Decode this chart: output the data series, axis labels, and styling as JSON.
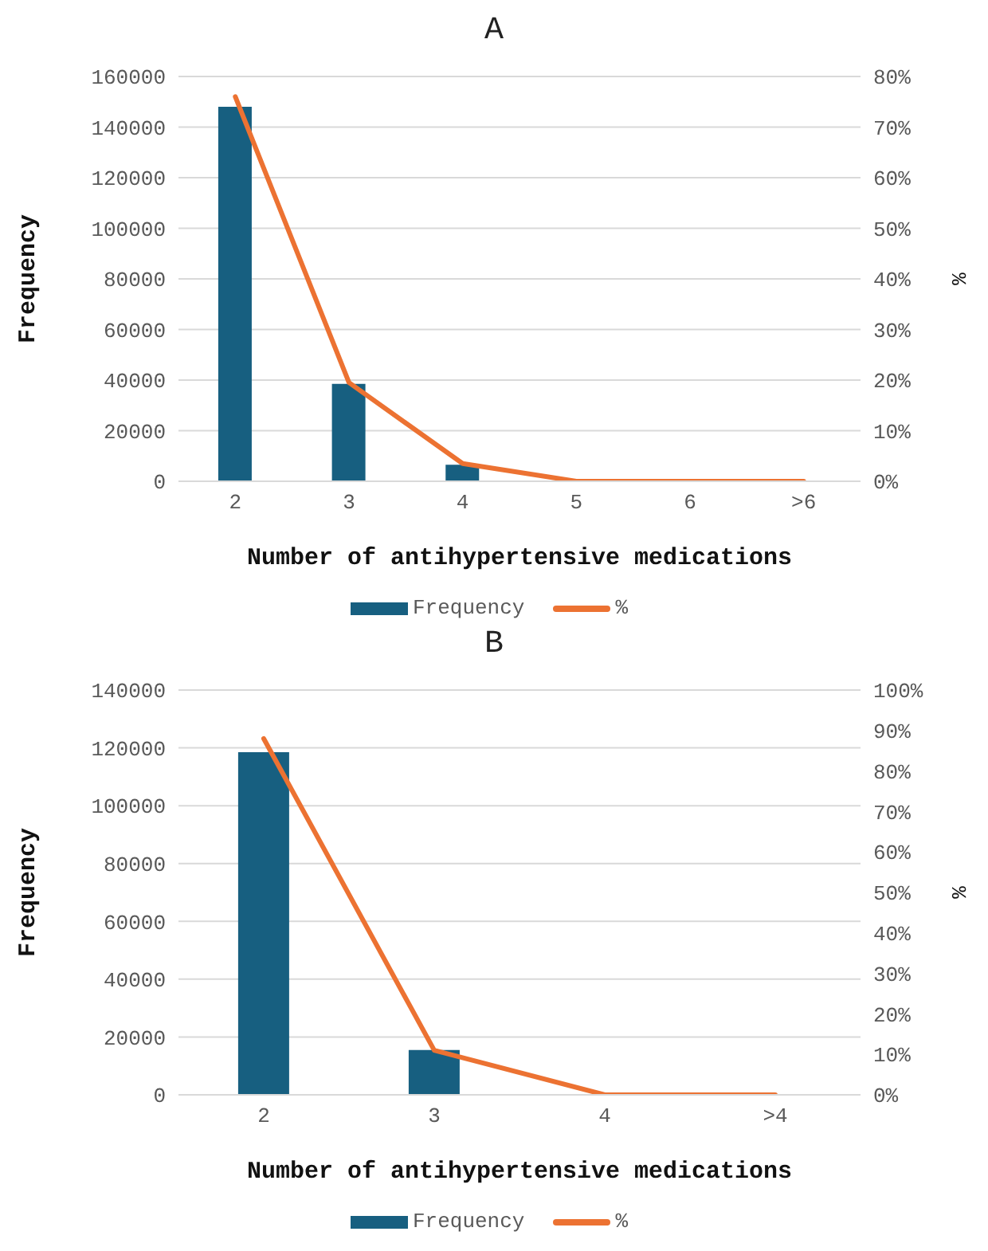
{
  "chart_data": [
    {
      "type": "bar",
      "title": "A",
      "xlabel": "Number of antihypertensive medications",
      "ylabel": "Frequency",
      "y2label": "%",
      "categories": [
        "2",
        "3",
        "4",
        "5",
        "6",
        ">6"
      ],
      "series": [
        {
          "name": "Frequency",
          "color": "#175f80",
          "values": [
            148000,
            38500,
            6500,
            0,
            0,
            0
          ]
        },
        {
          "name": "%",
          "type": "line",
          "axis": "y2",
          "color": "#ec7232",
          "values": [
            76,
            19.5,
            3.5,
            0,
            0,
            0
          ]
        }
      ],
      "ylim": [
        0,
        160000
      ],
      "yticks": [
        0,
        20000,
        40000,
        60000,
        80000,
        100000,
        120000,
        140000,
        160000
      ],
      "y2lim": [
        0,
        80
      ],
      "y2ticks": [
        {
          "value": 0,
          "label": "0%"
        },
        {
          "value": 10,
          "label": "10%"
        },
        {
          "value": 20,
          "label": "20%"
        },
        {
          "value": 30,
          "label": "30%"
        },
        {
          "value": 40,
          "label": "40%"
        },
        {
          "value": 50,
          "label": "50%"
        },
        {
          "value": 60,
          "label": "60%"
        },
        {
          "value": 70,
          "label": "70%"
        },
        {
          "value": 80,
          "label": "80%"
        }
      ],
      "grid": "y",
      "legend": "bottom",
      "marker": "none"
    },
    {
      "type": "bar",
      "title": "B",
      "xlabel": "Number of antihypertensive medications",
      "ylabel": "Frequency",
      "y2label": "%",
      "categories": [
        "2",
        "3",
        "4",
        ">4"
      ],
      "series": [
        {
          "name": "Frequency",
          "color": "#175f80",
          "values": [
            118500,
            15500,
            0,
            0
          ]
        },
        {
          "name": "%",
          "type": "line",
          "axis": "y2",
          "color": "#ec7232",
          "values": [
            88,
            11,
            0,
            0
          ]
        }
      ],
      "ylim": [
        0,
        140000
      ],
      "yticks": [
        0,
        20000,
        40000,
        60000,
        80000,
        100000,
        120000,
        140000
      ],
      "y2lim": [
        0,
        100
      ],
      "y2ticks": [
        {
          "value": 0,
          "label": "0%"
        },
        {
          "value": 10,
          "label": "10%"
        },
        {
          "value": 20,
          "label": "20%"
        },
        {
          "value": 30,
          "label": "30%"
        },
        {
          "value": 40,
          "label": "40%"
        },
        {
          "value": 50,
          "label": "50%"
        },
        {
          "value": 60,
          "label": "60%"
        },
        {
          "value": 70,
          "label": "70%"
        },
        {
          "value": 80,
          "label": "80%"
        },
        {
          "value": 90,
          "label": "90%"
        },
        {
          "value": 100,
          "label": "100%"
        }
      ],
      "grid": "y",
      "legend": "bottom",
      "marker": "none"
    }
  ]
}
